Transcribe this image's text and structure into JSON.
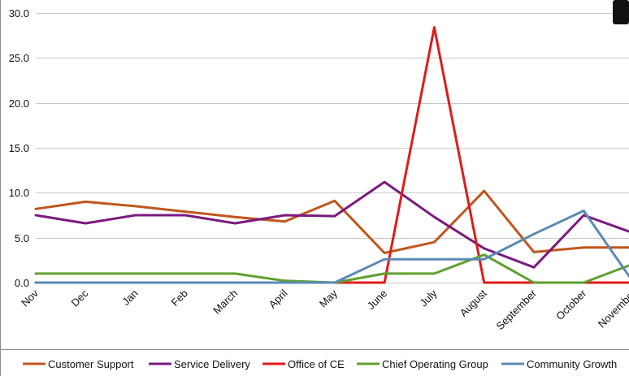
{
  "chart_data": {
    "type": "line",
    "categories": [
      "Nov",
      "Dec",
      "Jan",
      "Feb",
      "March",
      "April",
      "May",
      "June",
      "July",
      "August",
      "September",
      "October",
      "November"
    ],
    "ylim": [
      0,
      30
    ],
    "yticks": [
      "0.0",
      "5.0",
      "10.0",
      "15.0",
      "20.0",
      "25.0",
      "30.0"
    ],
    "grid": true,
    "legend": "bottom",
    "series": [
      {
        "name": "Customer Support",
        "color": "#c0561c",
        "values": [
          8.2,
          9.0,
          8.5,
          7.9,
          7.3,
          6.8,
          9.1,
          3.3,
          4.5,
          10.2,
          3.4,
          3.9,
          3.9
        ]
      },
      {
        "name": "Service Delivery",
        "color": "#7a1a7f",
        "values": [
          7.5,
          6.6,
          7.5,
          7.5,
          6.6,
          7.5,
          7.4,
          11.2,
          7.3,
          3.8,
          1.7,
          7.5,
          5.5
        ]
      },
      {
        "name": "Office of CE",
        "color": "#e01b1b",
        "values": [
          0,
          0,
          0,
          0,
          0,
          0,
          0,
          0,
          28.4,
          0,
          0,
          0,
          0
        ]
      },
      {
        "name": "Chief Operating Group",
        "color": "#5fa02e",
        "values": [
          1.0,
          1.0,
          1.0,
          1.0,
          1.0,
          0.2,
          0,
          1.0,
          1.0,
          3.1,
          0,
          0,
          2.1
        ]
      },
      {
        "name": "Community Growth",
        "color": "#5b8ab5",
        "values": [
          0,
          0,
          0,
          0,
          0,
          0,
          0,
          2.6,
          2.6,
          2.6,
          5.4,
          8.0,
          0
        ]
      }
    ]
  }
}
